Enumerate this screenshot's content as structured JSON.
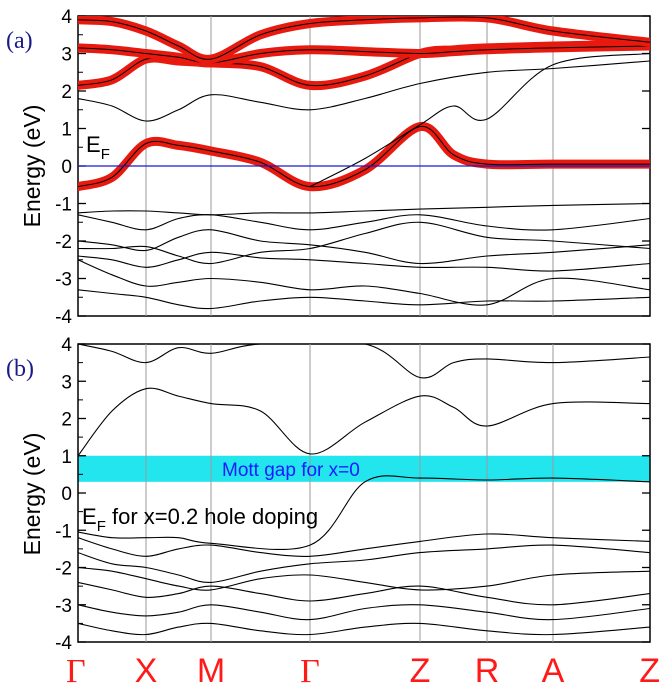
{
  "chart_data": [
    {
      "panel": "a",
      "type": "line",
      "panel_label": "(a)",
      "ylabel": "Energy (eV)",
      "ylim": [
        -4,
        4
      ],
      "yticks": [
        "4",
        "3",
        "2",
        "1",
        "0",
        "-1",
        "-2",
        "-3",
        "-4"
      ],
      "kpoints": [
        "Γ",
        "X",
        "M",
        "Γ",
        "Z",
        "R",
        "A",
        "Z"
      ],
      "fermi_level": 0,
      "fermi_label": "E",
      "fermi_label_sub": "F",
      "colors": {
        "bands": "#000000",
        "fatband": "#e8190f",
        "fermi": "#1a1acc"
      },
      "fat_bands": [
        [
          [
            0,
            -0.55
          ],
          [
            0.5,
            -0.3
          ],
          [
            1,
            0.6
          ],
          [
            1.5,
            0.55
          ],
          [
            2,
            0.4
          ],
          [
            2.5,
            0.1
          ],
          [
            3,
            -0.55
          ],
          [
            3.5,
            -0.1
          ],
          [
            4,
            1.05
          ],
          [
            4.5,
            0.3
          ],
          [
            5,
            0.05
          ],
          [
            6,
            0.05
          ],
          [
            7,
            0.05
          ]
        ],
        [
          [
            0,
            2.15
          ],
          [
            0.5,
            2.3
          ],
          [
            1,
            2.85
          ],
          [
            1.5,
            2.8
          ],
          [
            2,
            2.75
          ],
          [
            2.5,
            2.65
          ],
          [
            3,
            2.15
          ],
          [
            3.5,
            2.4
          ],
          [
            4,
            3.0
          ],
          [
            4.5,
            3.1
          ],
          [
            5,
            3.15
          ],
          [
            6,
            3.2
          ],
          [
            7,
            3.25
          ]
        ],
        [
          [
            0,
            3.15
          ],
          [
            0.5,
            3.1
          ],
          [
            1,
            3.0
          ],
          [
            1.5,
            2.9
          ],
          [
            2,
            2.75
          ],
          [
            2.5,
            3.0
          ],
          [
            3,
            3.1
          ],
          [
            3.5,
            3.05
          ],
          [
            4,
            3.0
          ],
          [
            4.5,
            3.05
          ],
          [
            5,
            3.1
          ],
          [
            6,
            3.15
          ],
          [
            7,
            3.2
          ]
        ],
        [
          [
            0,
            3.9
          ],
          [
            0.5,
            3.85
          ],
          [
            1,
            3.6
          ],
          [
            1.5,
            3.2
          ],
          [
            2,
            2.85
          ],
          [
            2.5,
            3.5
          ],
          [
            3,
            3.8
          ],
          [
            3.5,
            3.9
          ],
          [
            4,
            3.95
          ],
          [
            5,
            3.95
          ],
          [
            6,
            3.6
          ],
          [
            7,
            3.3
          ]
        ]
      ],
      "bands": [
        [
          [
            0,
            -1.25
          ],
          [
            0.5,
            -1.2
          ],
          [
            1,
            -1.2
          ],
          [
            1.5,
            -1.25
          ],
          [
            2,
            -1.3
          ],
          [
            2.5,
            -1.25
          ],
          [
            3,
            -1.25
          ],
          [
            3.5,
            -1.2
          ],
          [
            4,
            -1.15
          ],
          [
            5,
            -1.1
          ],
          [
            6,
            -1.05
          ],
          [
            7,
            -1.0
          ]
        ],
        [
          [
            0,
            -1.3
          ],
          [
            0.5,
            -1.5
          ],
          [
            1,
            -1.7
          ],
          [
            1.5,
            -1.4
          ],
          [
            2,
            -1.3
          ],
          [
            2.5,
            -1.5
          ],
          [
            3,
            -1.7
          ],
          [
            3.5,
            -1.5
          ],
          [
            4,
            -1.3
          ],
          [
            5,
            -1.6
          ],
          [
            6,
            -1.7
          ],
          [
            7,
            -1.4
          ]
        ],
        [
          [
            0,
            -2.0
          ],
          [
            0.5,
            -2.1
          ],
          [
            1,
            -2.25
          ],
          [
            1.5,
            -1.9
          ],
          [
            2,
            -1.7
          ],
          [
            2.5,
            -2.0
          ],
          [
            3,
            -2.1
          ],
          [
            3.5,
            -2.3
          ],
          [
            4,
            -2.6
          ],
          [
            5,
            -2.4
          ],
          [
            6,
            -2.3
          ],
          [
            7,
            -2.1
          ]
        ],
        [
          [
            0,
            -2.2
          ],
          [
            0.5,
            -2.2
          ],
          [
            1,
            -2.15
          ],
          [
            1.5,
            -2.4
          ],
          [
            2,
            -2.6
          ],
          [
            2.5,
            -2.3
          ],
          [
            3,
            -2.2
          ],
          [
            3.5,
            -1.8
          ],
          [
            4,
            -1.5
          ],
          [
            5,
            -1.9
          ],
          [
            6,
            -2.0
          ],
          [
            7,
            -2.2
          ]
        ],
        [
          [
            0,
            -2.4
          ],
          [
            0.5,
            -2.5
          ],
          [
            1,
            -2.7
          ],
          [
            1.5,
            -2.5
          ],
          [
            2,
            -2.3
          ],
          [
            2.5,
            -2.45
          ],
          [
            3,
            -2.5
          ],
          [
            3.5,
            -2.6
          ],
          [
            4,
            -2.7
          ],
          [
            5,
            -2.7
          ],
          [
            6,
            -2.8
          ],
          [
            7,
            -2.6
          ]
        ],
        [
          [
            0,
            -2.5
          ],
          [
            0.5,
            -2.9
          ],
          [
            1,
            -3.2
          ],
          [
            1.5,
            -3.1
          ],
          [
            2,
            -3.0
          ],
          [
            2.5,
            -3.1
          ],
          [
            3,
            -3.3
          ],
          [
            3.5,
            -3.2
          ],
          [
            4,
            -3.4
          ],
          [
            5,
            -3.7
          ],
          [
            6,
            -3.0
          ],
          [
            7,
            -3.3
          ]
        ],
        [
          [
            0,
            -3.3
          ],
          [
            0.5,
            -3.4
          ],
          [
            1,
            -3.5
          ],
          [
            1.5,
            -3.7
          ],
          [
            2,
            -3.8
          ],
          [
            2.5,
            -3.6
          ],
          [
            3,
            -3.5
          ],
          [
            3.5,
            -3.6
          ],
          [
            4,
            -3.7
          ],
          [
            5,
            -3.6
          ],
          [
            6,
            -3.6
          ],
          [
            7,
            -3.5
          ]
        ],
        [
          [
            0,
            1.8
          ],
          [
            0.5,
            1.6
          ],
          [
            1,
            1.2
          ],
          [
            1.5,
            1.5
          ],
          [
            2,
            1.9
          ],
          [
            2.5,
            1.7
          ],
          [
            3,
            1.5
          ],
          [
            3.5,
            1.8
          ],
          [
            4,
            2.2
          ],
          [
            5,
            2.5
          ],
          [
            6,
            2.6
          ],
          [
            7,
            2.8
          ]
        ],
        [
          [
            3,
            -0.55
          ],
          [
            3.5,
            0.2
          ],
          [
            4,
            1.1
          ],
          [
            4.5,
            1.6
          ],
          [
            5,
            1.25
          ],
          [
            6,
            2.7
          ],
          [
            7,
            3.0
          ]
        ]
      ]
    },
    {
      "panel": "b",
      "type": "line",
      "panel_label": "(b)",
      "ylabel": "Energy (eV)",
      "ylim": [
        -4,
        4
      ],
      "yticks": [
        "4",
        "3",
        "2",
        "1",
        "0",
        "-1",
        "-2",
        "-3",
        "-4"
      ],
      "kpoints": [
        "Γ",
        "X",
        "M",
        "Γ",
        "Z",
        "R",
        "A",
        "Z"
      ],
      "gap_band": {
        "from": 0.3,
        "to": 1.0,
        "label": "Mott gap for x=0",
        "color": "#22e5ee"
      },
      "fermi_annotation": "E",
      "fermi_annotation_sub": "F",
      "fermi_annotation_rest": " for x=0.2 hole doping",
      "bands": [
        [
          [
            0,
            1.0
          ],
          [
            0.5,
            2.2
          ],
          [
            1,
            2.8
          ],
          [
            1.5,
            2.6
          ],
          [
            2,
            2.4
          ],
          [
            2.5,
            2.2
          ],
          [
            3,
            1.05
          ],
          [
            3.5,
            1.9
          ],
          [
            4,
            2.6
          ],
          [
            4.5,
            2.3
          ],
          [
            5,
            1.8
          ],
          [
            6,
            2.4
          ],
          [
            7,
            2.4
          ]
        ],
        [
          [
            0,
            4.0
          ],
          [
            0.5,
            3.8
          ],
          [
            1,
            3.5
          ],
          [
            1.5,
            3.9
          ],
          [
            2,
            3.75
          ],
          [
            2.5,
            4.0
          ],
          [
            3.5,
            4.0
          ],
          [
            4,
            3.1
          ],
          [
            4.5,
            3.5
          ],
          [
            5,
            3.6
          ],
          [
            6,
            3.5
          ],
          [
            7,
            3.65
          ]
        ],
        [
          [
            0,
            -1.05
          ],
          [
            0.5,
            -1.2
          ],
          [
            1,
            -1.2
          ],
          [
            1.5,
            -1.2
          ],
          [
            2,
            -1.35
          ],
          [
            3,
            -1.4
          ],
          [
            3.5,
            0.3
          ],
          [
            4,
            0.4
          ],
          [
            5,
            0.35
          ],
          [
            6,
            0.4
          ],
          [
            7,
            0.3
          ]
        ],
        [
          [
            0,
            -1.2
          ],
          [
            0.5,
            -1.5
          ],
          [
            1,
            -1.7
          ],
          [
            1.5,
            -1.5
          ],
          [
            2,
            -1.4
          ],
          [
            2.5,
            -1.6
          ],
          [
            3,
            -1.7
          ],
          [
            3.5,
            -1.5
          ],
          [
            4,
            -1.3
          ],
          [
            5,
            -1.1
          ],
          [
            6,
            -1.2
          ],
          [
            7,
            -1.3
          ]
        ],
        [
          [
            0,
            -1.6
          ],
          [
            0.5,
            -1.9
          ],
          [
            1,
            -2.0
          ],
          [
            1.5,
            -2.2
          ],
          [
            2,
            -2.4
          ],
          [
            2.5,
            -2.1
          ],
          [
            3,
            -1.9
          ],
          [
            3.5,
            -1.8
          ],
          [
            4,
            -1.6
          ],
          [
            5,
            -1.5
          ],
          [
            6,
            -1.4
          ],
          [
            7,
            -1.6
          ]
        ],
        [
          [
            0,
            -2.0
          ],
          [
            0.5,
            -2.1
          ],
          [
            1,
            -2.3
          ],
          [
            1.5,
            -2.5
          ],
          [
            2,
            -2.6
          ],
          [
            2.5,
            -2.3
          ],
          [
            3,
            -2.2
          ],
          [
            3.5,
            -2.4
          ],
          [
            4,
            -2.6
          ],
          [
            5,
            -2.5
          ],
          [
            6,
            -2.2
          ],
          [
            7,
            -2.1
          ]
        ],
        [
          [
            0,
            -2.4
          ],
          [
            0.5,
            -2.6
          ],
          [
            1,
            -2.8
          ],
          [
            1.5,
            -2.7
          ],
          [
            2,
            -2.5
          ],
          [
            2.5,
            -2.7
          ],
          [
            3,
            -2.9
          ],
          [
            3.5,
            -2.7
          ],
          [
            4,
            -2.5
          ],
          [
            5,
            -2.8
          ],
          [
            6,
            -3.0
          ],
          [
            7,
            -2.7
          ]
        ],
        [
          [
            0,
            -3.0
          ],
          [
            0.5,
            -3.2
          ],
          [
            1,
            -3.3
          ],
          [
            1.5,
            -3.2
          ],
          [
            2,
            -3.0
          ],
          [
            2.5,
            -3.2
          ],
          [
            3,
            -3.4
          ],
          [
            3.5,
            -3.1
          ],
          [
            4,
            -3.0
          ],
          [
            5,
            -3.2
          ],
          [
            6,
            -3.4
          ],
          [
            7,
            -3.1
          ]
        ],
        [
          [
            0,
            -3.5
          ],
          [
            0.5,
            -3.7
          ],
          [
            1,
            -3.8
          ],
          [
            1.5,
            -3.6
          ],
          [
            2,
            -3.5
          ],
          [
            2.5,
            -3.7
          ],
          [
            3,
            -3.8
          ],
          [
            3.5,
            -3.6
          ],
          [
            4,
            -3.5
          ],
          [
            5,
            -3.7
          ],
          [
            6,
            -3.8
          ],
          [
            7,
            -3.6
          ]
        ]
      ]
    }
  ]
}
